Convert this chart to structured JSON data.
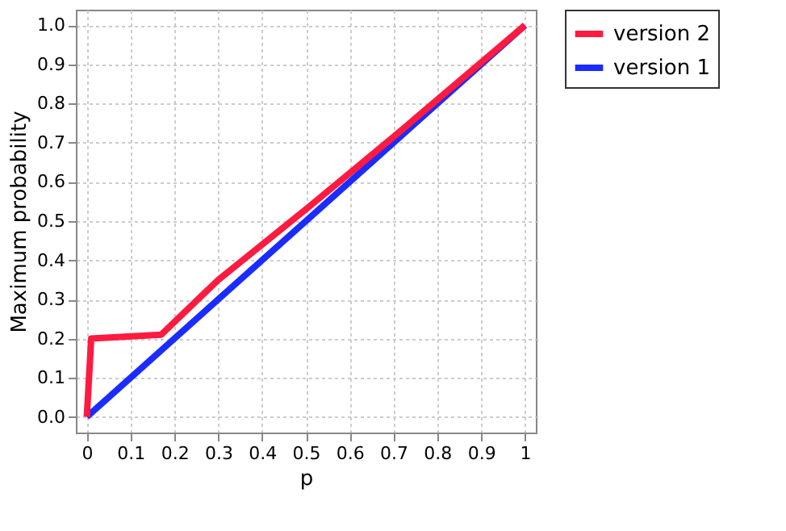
{
  "chart_data": {
    "type": "line",
    "xlabel": "p",
    "ylabel": "Maximum probability",
    "series": [
      {
        "name": "version 2",
        "color": "#ff1a40",
        "x": [
          0,
          0.01,
          0.17,
          0.3,
          0.5,
          0.7,
          0.8,
          1.0
        ],
        "values": [
          0,
          0.2,
          0.21,
          0.35,
          0.53,
          0.715,
          0.81,
          1.0
        ]
      },
      {
        "name": "version 1",
        "color": "#1a2cff",
        "x": [
          0,
          1.0
        ],
        "values": [
          0,
          1.0
        ]
      }
    ],
    "xlim": [
      -0.025,
      1.025
    ],
    "ylim": [
      -0.04,
      1.04
    ],
    "xticks": [
      0,
      0.1,
      0.2,
      0.3,
      0.4,
      0.5,
      0.6,
      0.7,
      0.8,
      0.9,
      1
    ],
    "yticks": [
      {
        "value": 0,
        "label": "0.0"
      },
      0.1,
      0.2,
      0.3,
      0.4,
      0.5,
      0.6,
      0.7,
      0.8,
      0.9,
      {
        "value": 1,
        "label": "1.0"
      }
    ],
    "grid": true,
    "legend": "right",
    "marker": "none",
    "line_style": "solid"
  }
}
